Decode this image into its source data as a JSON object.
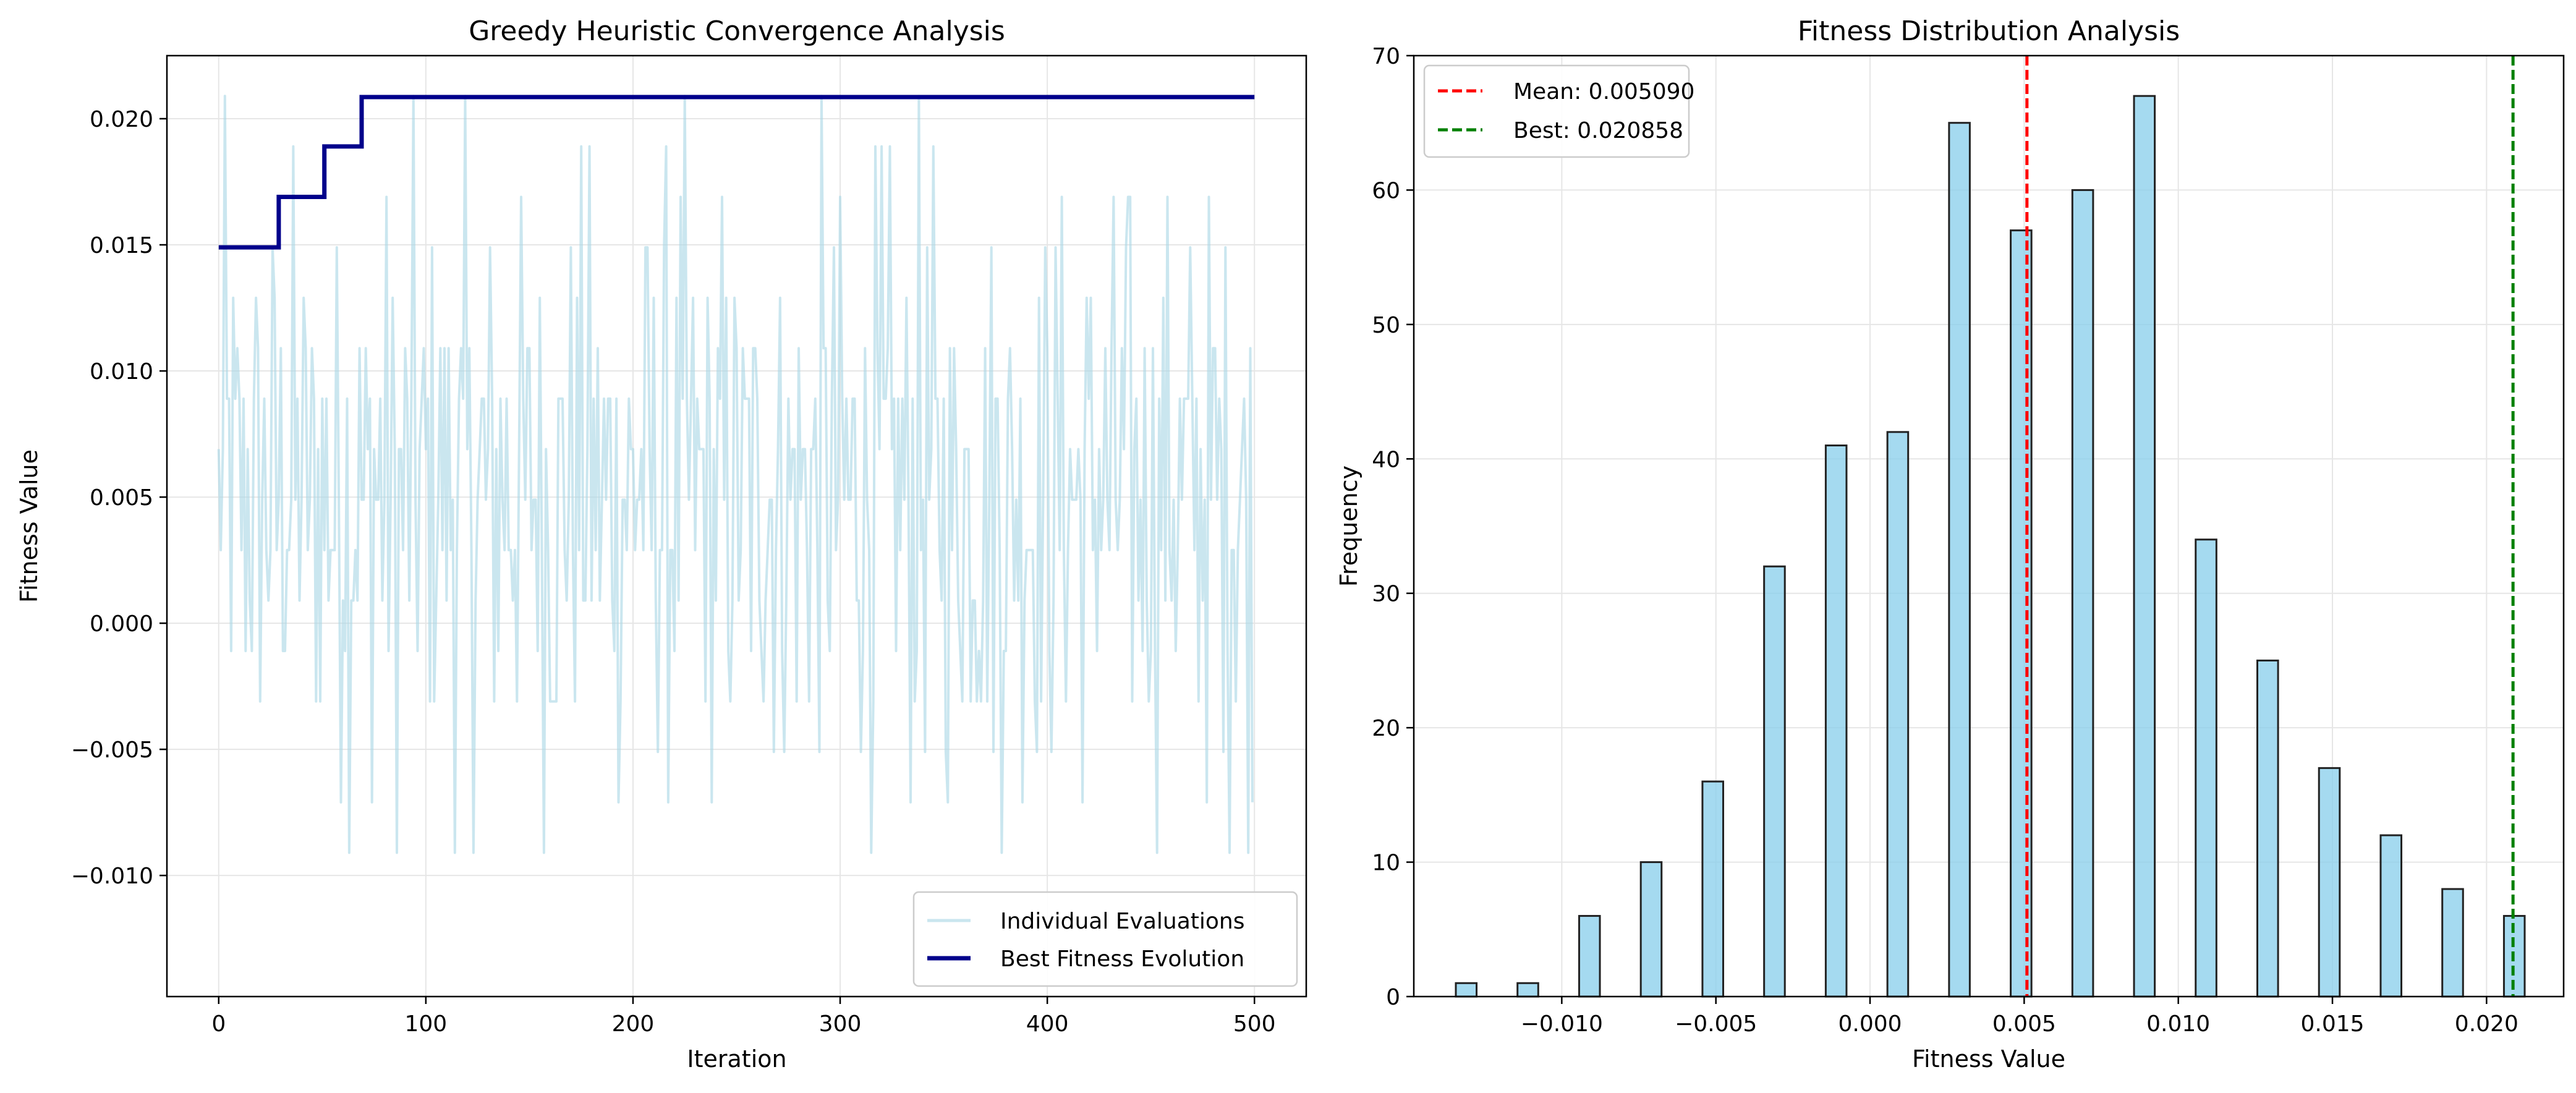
{
  "chart_data": [
    {
      "type": "line",
      "title": "Greedy Heuristic Convergence Analysis",
      "xlabel": "Iteration",
      "ylabel": "Fitness Value",
      "xlim": [
        -25,
        525
      ],
      "ylim": [
        -0.0148,
        0.0225
      ],
      "xticks": [
        0,
        100,
        200,
        300,
        400,
        500
      ],
      "xtick_labels": [
        "0",
        "100",
        "200",
        "300",
        "400",
        "500"
      ],
      "yticks": [
        -0.01,
        -0.005,
        0.0,
        0.005,
        0.01,
        0.015,
        0.02
      ],
      "ytick_labels": [
        "−0.010",
        "−0.005",
        "0.000",
        "0.005",
        "0.010",
        "0.015",
        "0.020"
      ],
      "grid": true,
      "legend_position": "lower-right",
      "series": [
        {
          "name": "Individual Evaluations",
          "color": "#add8e6",
          "kind": "noisy-line",
          "n_points": 500,
          "levels": [
            -0.0131,
            -0.0111,
            -0.0091,
            -0.0071,
            -0.0051,
            -0.0031,
            -0.0011,
            0.0009,
            0.0029,
            0.0049,
            0.0069,
            0.0089,
            0.0109,
            0.0129,
            0.0149,
            0.0169,
            0.0189,
            0.0209
          ],
          "level_weights": [
            1,
            1,
            6,
            10,
            16,
            32,
            41,
            42,
            65,
            57,
            60,
            67,
            34,
            25,
            17,
            12,
            8,
            6
          ]
        },
        {
          "name": "Best Fitness Evolution",
          "color": "#00008b",
          "kind": "step",
          "x": [
            0,
            29,
            29,
            51,
            51,
            69,
            69,
            500
          ],
          "y": [
            0.0149,
            0.0149,
            0.0169,
            0.0169,
            0.0189,
            0.0189,
            0.020858,
            0.020858
          ]
        }
      ]
    },
    {
      "type": "bar",
      "title": "Fitness Distribution Analysis",
      "xlabel": "Fitness Value",
      "ylabel": "Frequency",
      "xlim": [
        -0.0148,
        0.0225
      ],
      "ylim": [
        0,
        70
      ],
      "xticks": [
        -0.01,
        -0.005,
        0.0,
        0.005,
        0.01,
        0.015,
        0.02
      ],
      "xtick_labels": [
        "−0.010",
        "−0.005",
        "0.000",
        "0.005",
        "0.010",
        "0.015",
        "0.020"
      ],
      "yticks": [
        0,
        10,
        20,
        30,
        40,
        50,
        60,
        70
      ],
      "ytick_labels": [
        "0",
        "10",
        "20",
        "30",
        "40",
        "50",
        "60",
        "70"
      ],
      "grid": true,
      "legend_position": "top-left",
      "bin_width": 0.000673,
      "bar_color": "#87ceeb",
      "bar_edge_color": "#222222",
      "bins": [
        {
          "x": -0.0131,
          "count": 1
        },
        {
          "x": -0.0111,
          "count": 1
        },
        {
          "x": -0.0091,
          "count": 6
        },
        {
          "x": -0.0071,
          "count": 10
        },
        {
          "x": -0.0051,
          "count": 16
        },
        {
          "x": -0.0031,
          "count": 32
        },
        {
          "x": -0.0011,
          "count": 41
        },
        {
          "x": 0.0009,
          "count": 42
        },
        {
          "x": 0.0029,
          "count": 65
        },
        {
          "x": 0.0049,
          "count": 57
        },
        {
          "x": 0.0069,
          "count": 60
        },
        {
          "x": 0.0089,
          "count": 67
        },
        {
          "x": 0.0109,
          "count": 34
        },
        {
          "x": 0.0129,
          "count": 25
        },
        {
          "x": 0.0149,
          "count": 17
        },
        {
          "x": 0.0169,
          "count": 12
        },
        {
          "x": 0.0189,
          "count": 8
        },
        {
          "x": 0.0209,
          "count": 6
        }
      ],
      "vlines": [
        {
          "label": "Mean: 0.005090",
          "x": 0.00509,
          "color": "#ff0000"
        },
        {
          "label": "Best: 0.020858",
          "x": 0.020858,
          "color": "#008000"
        }
      ]
    }
  ]
}
